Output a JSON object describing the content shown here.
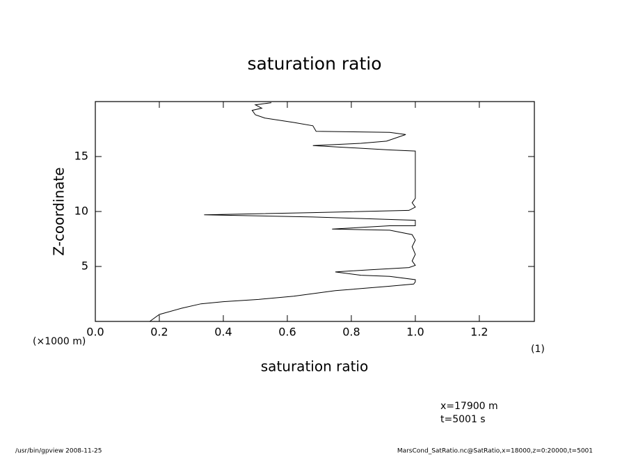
{
  "chart_data": {
    "type": "line",
    "title": "saturation ratio",
    "x_label": "saturation ratio",
    "y_label": "Z-coordinate",
    "y_unit": "(×1000 m)",
    "x_unit": "(1)",
    "annotations": [
      "x=17900 m",
      "t=5001 s"
    ],
    "footer_left": "/usr/bin/gpview  2008-11-25",
    "footer_right": "MarsCond_SatRatio.nc@SatRatio,x=18000,z=0:20000,t=5001",
    "color": "#000000",
    "x": [
      0.17,
      0.2,
      0.27,
      0.33,
      0.4,
      0.51,
      0.62,
      0.75,
      0.92,
      0.995,
      1.0,
      1.0,
      0.92,
      0.83,
      0.75,
      0.86,
      0.98,
      1.0,
      0.99,
      1.0,
      0.99,
      1.0,
      0.99,
      0.92,
      0.74,
      0.92,
      1.0,
      1.0,
      0.68,
      0.34,
      0.68,
      0.98,
      1.0,
      0.99,
      1.0,
      1.0,
      1.0,
      0.92,
      0.68,
      0.83,
      0.91,
      0.97,
      0.92,
      0.69,
      0.68,
      0.62,
      0.53,
      0.5,
      0.49,
      0.52,
      0.5,
      0.55
    ],
    "values": [
      0,
      0.63,
      1.2,
      1.6,
      1.8,
      2.0,
      2.3,
      2.8,
      3.2,
      3.4,
      3.6,
      3.8,
      4.1,
      4.2,
      4.5,
      4.7,
      4.9,
      5.1,
      5.5,
      6.1,
      6.8,
      7.4,
      7.9,
      8.3,
      8.4,
      8.7,
      8.7,
      9.2,
      9.5,
      9.7,
      9.9,
      10.1,
      10.4,
      10.8,
      11.2,
      12.8,
      15.5,
      15.6,
      16.0,
      16.2,
      16.4,
      17.0,
      17.2,
      17.3,
      17.8,
      18.1,
      18.5,
      18.8,
      19.2,
      19.4,
      19.7,
      19.9
    ],
    "xlim": [
      0,
      1.372
    ],
    "ylim": [
      0,
      20
    ],
    "xticks": [
      {
        "value": 0,
        "label": "0.0"
      },
      0.2,
      0.4,
      0.6,
      0.8,
      {
        "value": 1,
        "label": "1.0"
      },
      1.2
    ],
    "yticks": [
      5,
      10,
      15
    ]
  }
}
